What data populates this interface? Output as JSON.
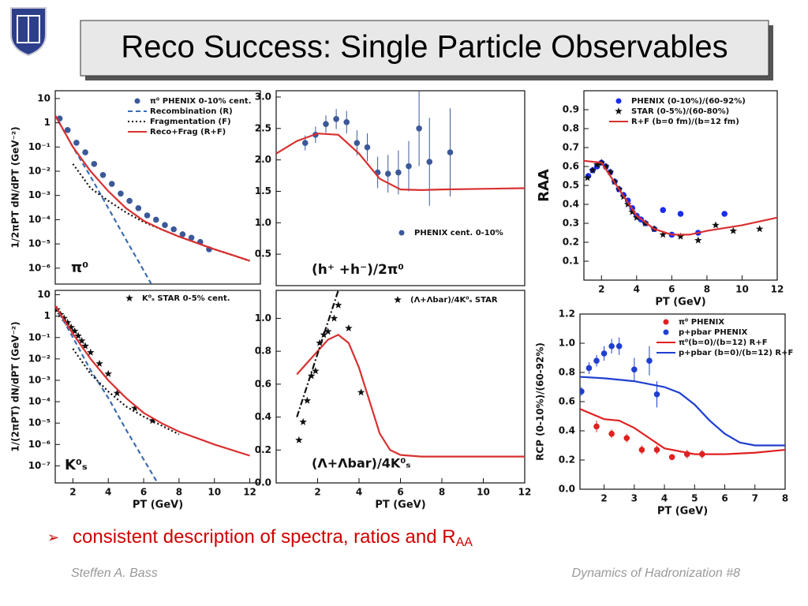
{
  "title": "Reco Success: Single Particle Observables",
  "bullet": {
    "text": "consistent description of spectra, ratios and R",
    "sub": "AA"
  },
  "footer": {
    "left": "Steffen A. Bass",
    "right": "Dynamics of Hadronization  #8"
  },
  "chart_data": [
    {
      "type": "scatter",
      "log": true,
      "xlim": [
        1,
        12.6
      ],
      "ylim": [
        2.2e-07,
        21
      ],
      "yticks": [
        10,
        1,
        {
          "value": 0.1,
          "label": "10⁻¹"
        },
        {
          "value": 0.01,
          "label": "10⁻²"
        },
        {
          "value": 0.001,
          "label": "10⁻³"
        },
        {
          "value": 0.0001,
          "label": "10⁻⁴"
        },
        {
          "value": 1e-05,
          "label": "10⁻⁵"
        },
        {
          "value": 1e-06,
          "label": "10⁻⁶"
        }
      ],
      "ylabel": "1/2πPT dN/dPT (GeV⁻²)",
      "annotation": "π⁰",
      "series": [
        {
          "name": "π⁰ PHENIX 0-10% cent.",
          "kind": "points",
          "marker": "circle",
          "color": "#3b5998",
          "x": [
            1.25,
            1.7,
            2.2,
            2.7,
            3.2,
            3.7,
            4.2,
            4.7,
            5.2,
            5.7,
            6.2,
            6.7,
            7.2,
            7.7,
            8.2,
            8.7,
            9.2,
            9.7
          ],
          "values": [
            1.5,
            0.5,
            0.15,
            0.06,
            0.02,
            0.007,
            0.003,
            0.0012,
            0.0006,
            0.0003,
            0.00015,
            0.0001,
            6e-05,
            4e-05,
            2.5e-05,
            1.8e-05,
            1.2e-05,
            6e-06
          ]
        },
        {
          "name": "Recombination (R)",
          "kind": "line",
          "dash": "dashed",
          "color": "#3b6db5",
          "x": [
            1,
            2,
            3,
            4,
            5,
            6,
            7
          ],
          "values": [
            2,
            0.1,
            0.006,
            0.0003,
            1.5e-05,
            8e-07,
            4e-08
          ]
        },
        {
          "name": "Fragmentation (F)",
          "kind": "line",
          "dash": "dotted",
          "color": "#111111",
          "x": [
            2,
            3,
            4,
            5,
            6,
            8,
            10,
            12
          ],
          "values": [
            0.02,
            0.002,
            0.0006,
            0.0002,
            8e-05,
            2e-05,
            6e-06,
            2e-06
          ]
        },
        {
          "name": "Reco+Frag (R+F)",
          "kind": "line",
          "color": "#d93030",
          "x": [
            1,
            2,
            3,
            4,
            5,
            6,
            7,
            8,
            9,
            10,
            11,
            12
          ],
          "values": [
            2,
            0.1,
            0.01,
            0.0015,
            0.0003,
            9e-05,
            4e-05,
            2e-05,
            1.1e-05,
            6e-06,
            3.5e-06,
            2e-06
          ]
        }
      ]
    },
    {
      "type": "scatter",
      "xlim": [
        0,
        12
      ],
      "ylim": [
        0,
        3.1
      ],
      "yticks": [
        {
          "value": 0.5,
          "label": "0.5"
        },
        {
          "value": 1,
          "label": "1.0"
        },
        {
          "value": 1.5,
          "label": "1.5"
        },
        {
          "value": 2,
          "label": "2.0"
        },
        {
          "value": 2.5,
          "label": "2.5"
        },
        {
          "value": 3,
          "label": "3.0"
        }
      ],
      "annotation": "(h⁺ +h⁻)/2π⁰",
      "series": [
        {
          "name": "PHENIX cent. 0-10%",
          "kind": "points",
          "marker": "circle",
          "color": "#3b5998",
          "x": [
            1.4,
            1.9,
            2.4,
            2.9,
            3.4,
            3.9,
            4.4,
            4.9,
            5.4,
            5.9,
            6.4,
            6.9,
            7.4,
            8.4
          ],
          "values": [
            2.27,
            2.4,
            2.57,
            2.65,
            2.6,
            2.27,
            2.2,
            1.8,
            1.78,
            1.8,
            1.9,
            2.5,
            1.97,
            2.12
          ],
          "errors": [
            0.12,
            0.13,
            0.14,
            0.16,
            0.18,
            0.2,
            0.22,
            0.25,
            0.3,
            0.35,
            0.4,
            0.6,
            0.7,
            0.7
          ]
        },
        {
          "kind": "line",
          "color": "#d93030",
          "x": [
            0,
            1,
            2,
            3,
            4,
            5,
            6,
            7,
            8,
            10,
            12
          ],
          "values": [
            2.1,
            2.3,
            2.42,
            2.4,
            2.1,
            1.7,
            1.53,
            1.52,
            1.53,
            1.54,
            1.55
          ]
        }
      ]
    },
    {
      "type": "scatter",
      "xlim": [
        1,
        12
      ],
      "ylim": [
        0,
        1
      ],
      "xticks": [
        2,
        4,
        6,
        8,
        10,
        12
      ],
      "yticks": [
        0.1,
        0.2,
        0.3,
        0.4,
        0.5,
        0.6,
        0.7,
        0.8,
        0.9
      ],
      "ylabel": "RAA",
      "xlabel": "PT (GeV)",
      "series": [
        {
          "name": "PHENIX (0-10%)/(60-92%)",
          "kind": "points",
          "marker": "circle",
          "color": "#1a2cf0",
          "x": [
            1.25,
            1.5,
            1.75,
            2,
            2.25,
            2.5,
            2.75,
            3,
            3.25,
            3.5,
            3.75,
            4,
            4.25,
            4.5,
            5,
            5.5,
            6,
            6.5,
            7.5,
            9
          ],
          "values": [
            0.55,
            0.58,
            0.6,
            0.62,
            0.6,
            0.57,
            0.52,
            0.48,
            0.45,
            0.42,
            0.38,
            0.34,
            0.32,
            0.3,
            0.27,
            0.37,
            0.24,
            0.35,
            0.25,
            0.35
          ]
        },
        {
          "name": "STAR (0-5%)/(60-80%)",
          "kind": "points",
          "marker": "star",
          "color": "#111111",
          "x": [
            1.2,
            1.5,
            1.75,
            2,
            2.25,
            2.5,
            2.75,
            3,
            3.25,
            3.5,
            3.75,
            4,
            4.5,
            5,
            5.5,
            6.5,
            7.5,
            8.5,
            9.5,
            11
          ],
          "values": [
            0.54,
            0.58,
            0.61,
            0.62,
            0.6,
            0.57,
            0.52,
            0.48,
            0.44,
            0.4,
            0.36,
            0.33,
            0.3,
            0.27,
            0.24,
            0.23,
            0.21,
            0.29,
            0.26,
            0.27
          ]
        },
        {
          "name": "R+F (b=0 fm)/(b=12 fm)",
          "kind": "line",
          "color": "#d93030",
          "x": [
            1,
            2,
            3,
            4,
            5,
            6,
            7,
            8,
            10,
            12
          ],
          "values": [
            0.63,
            0.62,
            0.48,
            0.34,
            0.27,
            0.24,
            0.24,
            0.26,
            0.29,
            0.33
          ]
        }
      ]
    },
    {
      "type": "scatter",
      "log": true,
      "xlim": [
        1,
        12.6
      ],
      "ylim": [
        1.6e-08,
        16
      ],
      "xticks": [
        2,
        4,
        6,
        8,
        10,
        12
      ],
      "yticks": [
        10,
        1,
        {
          "value": 0.1,
          "label": "10⁻¹"
        },
        {
          "value": 0.01,
          "label": "10⁻²"
        },
        {
          "value": 0.001,
          "label": "10⁻³"
        },
        {
          "value": 0.0001,
          "label": "10⁻⁴"
        },
        {
          "value": 1e-05,
          "label": "10⁻⁵"
        },
        {
          "value": 1e-06,
          "label": "10⁻⁶"
        },
        {
          "value": 1e-07,
          "label": "10⁻⁷"
        }
      ],
      "ylabel": "1/(2πPT) dN/dPT (GeV⁻²)",
      "xlabel": "PT (GeV)",
      "annotation": "K⁰ₛ",
      "series": [
        {
          "name": "K⁰ₛ STAR 0-5% cent.",
          "kind": "points",
          "marker": "star",
          "color": "#111111",
          "x": [
            1.1,
            1.3,
            1.5,
            1.7,
            1.9,
            2.1,
            2.3,
            2.5,
            2.7,
            3,
            3.5,
            4,
            4.5,
            5.5,
            6.5
          ],
          "values": [
            2,
            1.2,
            0.8,
            0.5,
            0.3,
            0.2,
            0.12,
            0.07,
            0.04,
            0.02,
            0.006,
            0.002,
            0.00025,
            5e-05,
            1.3e-05
          ]
        },
        {
          "kind": "line",
          "dash": "dashed",
          "color": "#3b6db5",
          "x": [
            1,
            2,
            3,
            4,
            5,
            6,
            7
          ],
          "values": [
            3,
            0.1,
            0.003,
            0.00015,
            5e-06,
            2e-07,
            8e-09
          ]
        },
        {
          "kind": "line",
          "dash": "dotted",
          "color": "#111111",
          "x": [
            2,
            3,
            4,
            5,
            6,
            8
          ],
          "values": [
            0.03,
            0.002,
            0.0003,
            6e-05,
            2e-05,
            3e-06
          ]
        },
        {
          "kind": "line",
          "color": "#d93030",
          "x": [
            1,
            2,
            3,
            4,
            5,
            6,
            7,
            8,
            10,
            12
          ],
          "values": [
            3,
            0.15,
            0.01,
            0.001,
            0.00015,
            3e-05,
            1e-05,
            4e-06,
            1e-06,
            3e-07
          ]
        }
      ]
    },
    {
      "type": "scatter",
      "xlim": [
        0,
        12
      ],
      "ylim": [
        0,
        1.17
      ],
      "xticks": [
        2,
        4,
        6,
        8,
        10,
        12
      ],
      "yticks": [
        {
          "value": 0,
          "label": "0.0"
        },
        0.2,
        0.4,
        0.6,
        0.8,
        {
          "value": 1,
          "label": "1.0"
        }
      ],
      "xlabel": "PT (GeV)",
      "annotation": "(Λ+Λbar)/4K⁰ₛ",
      "series": [
        {
          "name": "(Λ+Λbar)/4K⁰ₛ STAR",
          "kind": "points",
          "marker": "star",
          "color": "#111111",
          "x": [
            1.1,
            1.3,
            1.5,
            1.7,
            1.9,
            2.1,
            2.3,
            2.5,
            2.8,
            3,
            3.5,
            4.1
          ],
          "values": [
            0.26,
            0.37,
            0.5,
            0.65,
            0.68,
            0.85,
            0.9,
            0.92,
            1,
            1.08,
            0.94,
            0.55
          ]
        },
        {
          "kind": "line",
          "color": "#d93030",
          "x": [
            1,
            1.5,
            2,
            2.5,
            3,
            3.5,
            4,
            4.5,
            5,
            5.5,
            6,
            7,
            8,
            10,
            12
          ],
          "values": [
            0.66,
            0.73,
            0.8,
            0.87,
            0.9,
            0.85,
            0.7,
            0.5,
            0.3,
            0.2,
            0.17,
            0.16,
            0.16,
            0.16,
            0.16
          ]
        },
        {
          "kind": "line",
          "dash": "dashdot",
          "color": "#111111",
          "x": [
            1,
            3
          ],
          "values": [
            0.4,
            1.17
          ]
        }
      ]
    },
    {
      "type": "scatter",
      "xlim": [
        1.2,
        8
      ],
      "ylim": [
        0,
        1.2
      ],
      "xticks": [
        2,
        3,
        4,
        5,
        6,
        7,
        8
      ],
      "yticks": [
        {
          "value": 0,
          "label": "0.0"
        },
        0.2,
        0.4,
        0.6,
        0.8,
        {
          "value": 1,
          "label": "1.0"
        },
        {
          "value": 1.2,
          "label": "1.2"
        }
      ],
      "ylabel": "RCP (0-10%)/(60-92%)",
      "xlabel": "PT (GeV)",
      "series": [
        {
          "name": "π⁰ PHENIX",
          "kind": "points",
          "marker": "circle",
          "color": "#e02020",
          "x": [
            1.75,
            2.25,
            2.75,
            3.25,
            3.75,
            4.25,
            4.75,
            5.25
          ],
          "values": [
            0.43,
            0.38,
            0.35,
            0.27,
            0.27,
            0.22,
            0.24,
            0.24
          ],
          "errors": [
            0.04,
            0.03,
            0.03,
            0.03,
            0.03,
            0.02,
            0.03,
            0.03
          ]
        },
        {
          "name": "p+pbar PHENIX",
          "kind": "points",
          "marker": "circle",
          "color": "#1f3fd0",
          "x": [
            1.25,
            1.5,
            1.75,
            2,
            2.25,
            2.5,
            3,
            3.5,
            3.75
          ],
          "values": [
            0.67,
            0.83,
            0.88,
            0.93,
            0.98,
            0.98,
            0.82,
            0.88,
            0.65
          ],
          "errors": [
            0.03,
            0.04,
            0.04,
            0.05,
            0.05,
            0.06,
            0.08,
            0.1,
            0.09
          ]
        },
        {
          "name": "π⁰(b=0)/(b=12) R+F",
          "kind": "line",
          "color": "#e02020",
          "x": [
            1.2,
            2,
            2.5,
            3,
            3.5,
            4,
            5,
            6,
            7,
            8
          ],
          "values": [
            0.55,
            0.48,
            0.47,
            0.42,
            0.35,
            0.28,
            0.24,
            0.24,
            0.25,
            0.27
          ]
        },
        {
          "name": "p+pbar (b=0)/(b=12) R+F",
          "kind": "line",
          "color": "#1f3fd0",
          "x": [
            1.2,
            2,
            3,
            4,
            4.5,
            5,
            5.5,
            6,
            6.5,
            7,
            8
          ],
          "values": [
            0.77,
            0.76,
            0.74,
            0.7,
            0.66,
            0.58,
            0.47,
            0.38,
            0.32,
            0.3,
            0.3
          ]
        }
      ]
    }
  ]
}
